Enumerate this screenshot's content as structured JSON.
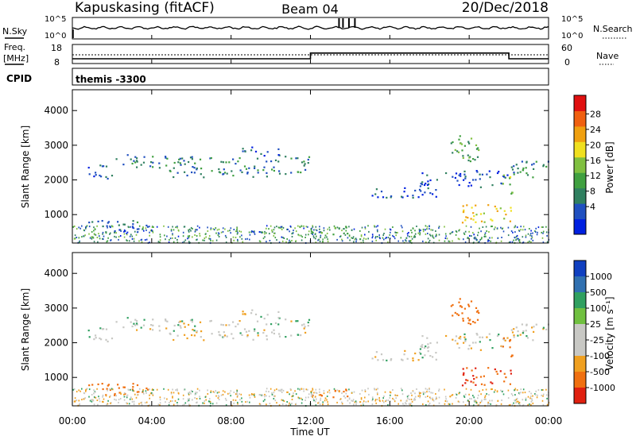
{
  "header": {
    "station": "Kapuskasing (fitACF)",
    "beam": "Beam 04",
    "date": "20/Dec/2018"
  },
  "noise_panel": {
    "left_label": "N.Sky",
    "left_ticks": [
      "10^5",
      "10^0"
    ],
    "right_label": "N.Search",
    "right_ticks": [
      "10^5",
      "10^0"
    ]
  },
  "freq_panel": {
    "left_label_line1": "Freq.",
    "left_label_line2": "[MHz]",
    "left_ticks": [
      "18",
      "8"
    ],
    "right_label": "Nave",
    "right_ticks": [
      "60",
      "0"
    ]
  },
  "cpid_panel": {
    "label": "CPID",
    "text": "themis -3300"
  },
  "x_axis": {
    "title": "Time UT",
    "ticks": [
      "00:00",
      "04:00",
      "08:00",
      "12:00",
      "16:00",
      "20:00",
      "00:00"
    ]
  },
  "power_panel": {
    "ylabel": "Slant Range [km]",
    "yticks": [
      "4000",
      "3000",
      "2000",
      "1000"
    ],
    "colorbar_label": "Power [dB]",
    "colorbar_ticks": [
      "28",
      "24",
      "20",
      "16",
      "12",
      "8",
      "4"
    ],
    "colors": [
      "#0020e0",
      "#2050c0",
      "#308060",
      "#40a040",
      "#80c040",
      "#f0e020",
      "#f0a010",
      "#f06010",
      "#e01010"
    ]
  },
  "velocity_panel": {
    "ylabel": "Slant Range [km]",
    "yticks": [
      "4000",
      "3000",
      "2000",
      "1000"
    ],
    "colorbar_label": "Velocity [m s⁻¹]",
    "colorbar_ticks": [
      "1000",
      "500",
      "100",
      "25",
      "-25",
      "-100",
      "-500",
      "-1000"
    ],
    "colors": [
      "#1040c0",
      "#3070b0",
      "#30a060",
      "#70c040",
      "#c8c8c4",
      "#c8c8c4",
      "#f0a020",
      "#f07010",
      "#e02010"
    ]
  },
  "chart_data": {
    "type": "heatmap",
    "x_range_hours": [
      0,
      24
    ],
    "y_range_km": [
      180,
      4600
    ],
    "bands": [
      {
        "t0": 0.7,
        "t1": 2.0,
        "r0": 2050,
        "r1": 2550,
        "power": 8,
        "velocity": 0
      },
      {
        "t0": 2.0,
        "t1": 4.5,
        "r0": 2350,
        "r1": 2750,
        "power": 10,
        "velocity": 0
      },
      {
        "t0": 4.5,
        "t1": 11.9,
        "r0": 2100,
        "r1": 2700,
        "power": 10,
        "velocity": 0
      },
      {
        "t0": 8.5,
        "t1": 10.5,
        "r0": 2700,
        "r1": 3000,
        "power": 8,
        "velocity": 0
      },
      {
        "t0": 0.5,
        "t1": 4.0,
        "r0": 500,
        "r1": 850,
        "power": 8,
        "velocity": -300
      },
      {
        "t0": 11.9,
        "t1": 14.0,
        "r0": 450,
        "r1": 700,
        "power": 12,
        "velocity": -150
      },
      {
        "t0": 14.5,
        "t1": 18.5,
        "r0": 1500,
        "r1": 1800,
        "power": 6,
        "velocity": 0
      },
      {
        "t0": 17.5,
        "t1": 22.0,
        "r0": 1800,
        "r1": 2300,
        "power": 6,
        "velocity": 0
      },
      {
        "t0": 19.5,
        "t1": 22.3,
        "r0": 750,
        "r1": 1300,
        "power": 20,
        "velocity": -500
      },
      {
        "t0": 22.0,
        "t1": 24.0,
        "r0": 2100,
        "r1": 2700,
        "power": 10,
        "velocity": 0
      },
      {
        "t0": 19.0,
        "t1": 20.5,
        "r0": 2500,
        "r1": 3400,
        "power": 14,
        "velocity": -300
      },
      {
        "t0": 21.5,
        "t1": 22.2,
        "r0": 1600,
        "r1": 2200,
        "power": 16,
        "velocity": -200
      }
    ],
    "frequency_steps_mhz": [
      {
        "t0": 0.0,
        "t1": 12.0,
        "value": 10.5
      },
      {
        "t0": 12.0,
        "t1": 22.0,
        "value": 13.5
      },
      {
        "t0": 22.0,
        "t1": 24.0,
        "value": 10.5
      }
    ]
  }
}
